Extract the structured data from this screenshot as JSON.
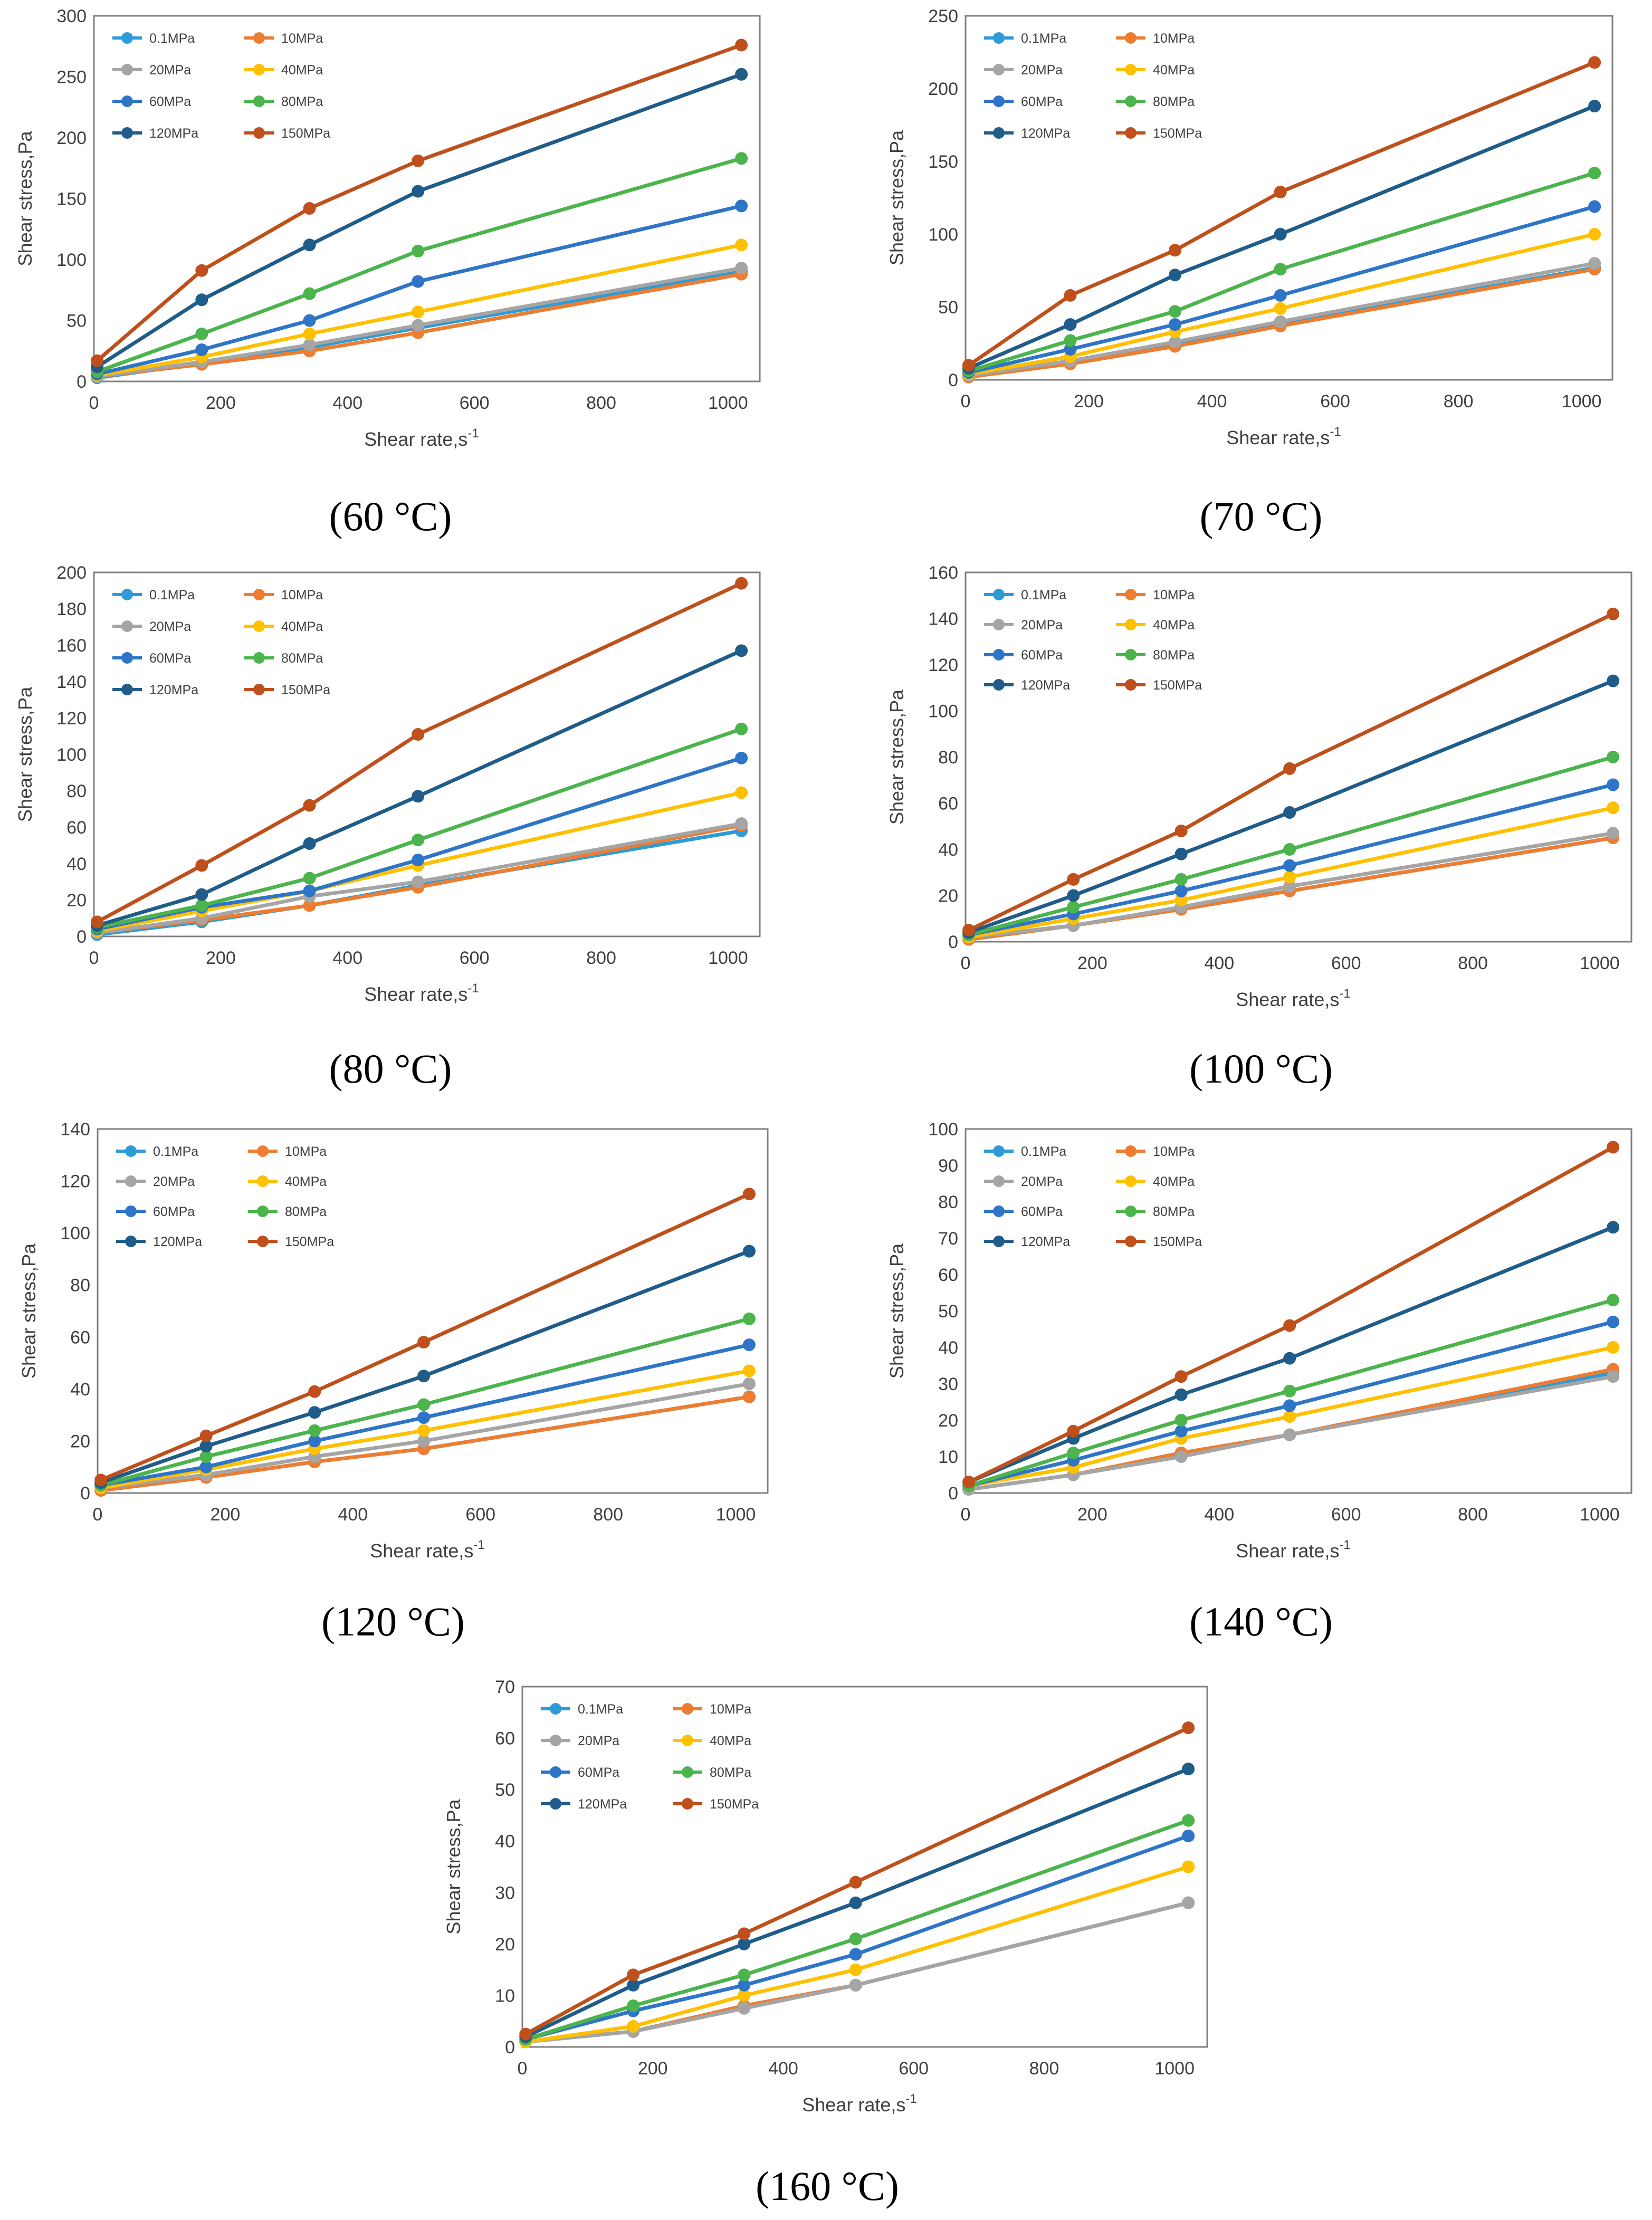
{
  "colors": {
    "0.1MPa": "#2E9BD6",
    "10MPa": "#ED7D31",
    "20MPa": "#A5A5A5",
    "40MPa": "#FFC000",
    "60MPa": "#2E75C8",
    "80MPa": "#4CB44C",
    "120MPa": "#1F5C8A",
    "150MPa": "#C0501B"
  },
  "chart_data": [
    {
      "type": "line",
      "caption": "(60 °C)",
      "xlabel": "Shear rate,s",
      "xlabel_sup": "-1",
      "ylabel": "Shear stress,Pa",
      "x": [
        5.1,
        170,
        340,
        511,
        1021
      ],
      "xlim": [
        0,
        1050
      ],
      "ylim": [
        0,
        300
      ],
      "xticks": [
        "0",
        "200",
        "400",
        "600",
        "800",
        "1000"
      ],
      "yticks": [
        "0",
        "50",
        "100",
        "150",
        "200",
        "250",
        "300"
      ],
      "series": [
        {
          "name": "0.1MPa",
          "values": [
            3,
            15,
            28,
            44,
            90
          ]
        },
        {
          "name": "10MPa",
          "values": [
            4,
            14,
            25,
            40,
            88
          ]
        },
        {
          "name": "20MPa",
          "values": [
            4,
            16,
            30,
            46,
            93
          ]
        },
        {
          "name": "40MPa",
          "values": [
            5,
            20,
            39,
            57,
            112
          ]
        },
        {
          "name": "60MPa",
          "values": [
            6,
            26,
            50,
            82,
            144
          ]
        },
        {
          "name": "80MPa",
          "values": [
            8,
            39,
            72,
            107,
            183
          ]
        },
        {
          "name": "120MPa",
          "values": [
            12,
            67,
            112,
            156,
            252
          ]
        },
        {
          "name": "150MPa",
          "values": [
            17,
            91,
            142,
            181,
            276
          ]
        }
      ]
    },
    {
      "type": "line",
      "caption": "(70 °C)",
      "xlabel": "Shear rate,s",
      "xlabel_sup": "-1",
      "ylabel": "Shear stress,Pa",
      "x": [
        5.1,
        170,
        340,
        511,
        1021
      ],
      "xlim": [
        0,
        1050
      ],
      "ylim": [
        0,
        250
      ],
      "xticks": [
        "0",
        "200",
        "400",
        "600",
        "800",
        "1000"
      ],
      "yticks": [
        "0",
        "50",
        "100",
        "150",
        "200",
        "250"
      ],
      "series": [
        {
          "name": "0.1MPa",
          "values": [
            2,
            12,
            24,
            38,
            77
          ]
        },
        {
          "name": "10MPa",
          "values": [
            2,
            11,
            23,
            37,
            76
          ]
        },
        {
          "name": "20MPa",
          "values": [
            3,
            13,
            26,
            40,
            80
          ]
        },
        {
          "name": "40MPa",
          "values": [
            4,
            16,
            33,
            49,
            100
          ]
        },
        {
          "name": "60MPa",
          "values": [
            5,
            21,
            38,
            58,
            119
          ]
        },
        {
          "name": "80MPa",
          "values": [
            6,
            27,
            47,
            76,
            142
          ]
        },
        {
          "name": "120MPa",
          "values": [
            8,
            38,
            72,
            100,
            188
          ]
        },
        {
          "name": "150MPa",
          "values": [
            10,
            58,
            89,
            129,
            218
          ]
        }
      ]
    },
    {
      "type": "line",
      "caption": "(80 °C)",
      "xlabel": "Shear rate,s",
      "xlabel_sup": "-1",
      "ylabel": "Shear stress,Pa",
      "x": [
        5.1,
        170,
        340,
        511,
        1021
      ],
      "xlim": [
        0,
        1050
      ],
      "ylim": [
        0,
        200
      ],
      "xticks": [
        "0",
        "200",
        "400",
        "600",
        "800",
        "1000"
      ],
      "yticks": [
        "0",
        "20",
        "40",
        "60",
        "80",
        "100",
        "120",
        "140",
        "160",
        "180",
        "200"
      ],
      "series": [
        {
          "name": "0.1MPa",
          "values": [
            1,
            8,
            17,
            28,
            58
          ]
        },
        {
          "name": "10MPa",
          "values": [
            2,
            9,
            17,
            27,
            61
          ]
        },
        {
          "name": "20MPa",
          "values": [
            2,
            10,
            22,
            30,
            62
          ]
        },
        {
          "name": "40MPa",
          "values": [
            3,
            14,
            25,
            39,
            79
          ]
        },
        {
          "name": "60MPa",
          "values": [
            4,
            16,
            25,
            42,
            98
          ]
        },
        {
          "name": "80MPa",
          "values": [
            5,
            17,
            32,
            53,
            114
          ]
        },
        {
          "name": "120MPa",
          "values": [
            6,
            23,
            51,
            77,
            157
          ]
        },
        {
          "name": "150MPa",
          "values": [
            8,
            39,
            72,
            111,
            194
          ]
        }
      ]
    },
    {
      "type": "line",
      "caption": "(100 °C)",
      "xlabel": "Shear rate,s",
      "xlabel_sup": "-1",
      "ylabel": "Shear stress,Pa",
      "x": [
        5.1,
        170,
        340,
        511,
        1021
      ],
      "xlim": [
        0,
        1050
      ],
      "ylim": [
        0,
        160
      ],
      "xticks": [
        "0",
        "200",
        "400",
        "600",
        "800",
        "1000"
      ],
      "yticks": [
        "0",
        "20",
        "40",
        "60",
        "80",
        "100",
        "120",
        "140",
        "160"
      ],
      "series": [
        {
          "name": "0.1MPa",
          "values": [
            1,
            7,
            15,
            22,
            45
          ]
        },
        {
          "name": "10MPa",
          "values": [
            1,
            7,
            14,
            22,
            45
          ]
        },
        {
          "name": "20MPa",
          "values": [
            2,
            7,
            15,
            24,
            47
          ]
        },
        {
          "name": "40MPa",
          "values": [
            2,
            10,
            18,
            28,
            58
          ]
        },
        {
          "name": "60MPa",
          "values": [
            3,
            12,
            22,
            33,
            68
          ]
        },
        {
          "name": "80MPa",
          "values": [
            3,
            15,
            27,
            40,
            80
          ]
        },
        {
          "name": "120MPa",
          "values": [
            4,
            20,
            38,
            56,
            113
          ]
        },
        {
          "name": "150MPa",
          "values": [
            5,
            27,
            48,
            75,
            142
          ]
        }
      ]
    },
    {
      "type": "line",
      "caption": "(120 °C)",
      "xlabel": "Shear rate,s",
      "xlabel_sup": "-1",
      "ylabel": "Shear stress,Pa",
      "x": [
        5.1,
        170,
        340,
        511,
        1021
      ],
      "xlim": [
        0,
        1050
      ],
      "ylim": [
        0,
        140
      ],
      "xticks": [
        "0",
        "200",
        "400",
        "600",
        "800",
        "1000"
      ],
      "yticks": [
        "0",
        "20",
        "40",
        "60",
        "80",
        "100",
        "120",
        "140"
      ],
      "series": [
        {
          "name": "0.1MPa",
          "values": [
            1,
            6,
            12,
            17,
            37
          ]
        },
        {
          "name": "10MPa",
          "values": [
            1,
            6,
            12,
            17,
            37
          ]
        },
        {
          "name": "20MPa",
          "values": [
            2,
            7,
            14,
            20,
            42
          ]
        },
        {
          "name": "40MPa",
          "values": [
            2,
            9,
            17,
            24,
            47
          ]
        },
        {
          "name": "60MPa",
          "values": [
            3,
            10,
            20,
            29,
            57
          ]
        },
        {
          "name": "80MPa",
          "values": [
            3,
            14,
            24,
            34,
            67
          ]
        },
        {
          "name": "120MPa",
          "values": [
            4,
            18,
            31,
            45,
            93
          ]
        },
        {
          "name": "150MPa",
          "values": [
            5,
            22,
            39,
            58,
            115
          ]
        }
      ]
    },
    {
      "type": "line",
      "caption": "(140 °C)",
      "xlabel": "Shear rate,s",
      "xlabel_sup": "-1",
      "ylabel": "Shear stress,Pa",
      "x": [
        5.1,
        170,
        340,
        511,
        1021
      ],
      "xlim": [
        0,
        1050
      ],
      "ylim": [
        0,
        100
      ],
      "xticks": [
        "0",
        "200",
        "400",
        "600",
        "800",
        "1000"
      ],
      "yticks": [
        "0",
        "10",
        "20",
        "30",
        "40",
        "50",
        "60",
        "70",
        "80",
        "90",
        "100"
      ],
      "series": [
        {
          "name": "0.1MPa",
          "values": [
            1,
            5,
            11,
            16,
            33
          ]
        },
        {
          "name": "10MPa",
          "values": [
            1,
            5,
            11,
            16,
            34
          ]
        },
        {
          "name": "20MPa",
          "values": [
            1,
            5,
            10,
            16,
            32
          ]
        },
        {
          "name": "40MPa",
          "values": [
            2,
            7,
            15,
            21,
            40
          ]
        },
        {
          "name": "60MPa",
          "values": [
            2,
            9,
            17,
            24,
            47
          ]
        },
        {
          "name": "80MPa",
          "values": [
            2,
            11,
            20,
            28,
            53
          ]
        },
        {
          "name": "120MPa",
          "values": [
            3,
            15,
            27,
            37,
            73
          ]
        },
        {
          "name": "150MPa",
          "values": [
            3,
            17,
            32,
            46,
            95
          ]
        }
      ]
    },
    {
      "type": "line",
      "caption": "(160 °C)",
      "xlabel": "Shear rate,s",
      "xlabel_sup": "-1",
      "ylabel": "Shear stress,Pa",
      "x": [
        5.1,
        170,
        340,
        511,
        1021
      ],
      "xlim": [
        0,
        1050
      ],
      "ylim": [
        0,
        70
      ],
      "xticks": [
        "0",
        "200",
        "400",
        "600",
        "800",
        "1000"
      ],
      "yticks": [
        "0",
        "10",
        "20",
        "30",
        "40",
        "50",
        "60",
        "70"
      ],
      "series": [
        {
          "name": "0.1MPa",
          "values": [
            1,
            3,
            8,
            12,
            28
          ]
        },
        {
          "name": "10MPa",
          "values": [
            1,
            3,
            8,
            12,
            28
          ]
        },
        {
          "name": "20MPa",
          "values": [
            1,
            3,
            7.5,
            12,
            28
          ]
        },
        {
          "name": "40MPa",
          "values": [
            1,
            4,
            10,
            15,
            35
          ]
        },
        {
          "name": "60MPa",
          "values": [
            1.5,
            7,
            12,
            18,
            41
          ]
        },
        {
          "name": "80MPa",
          "values": [
            1.5,
            8,
            14,
            21,
            44
          ]
        },
        {
          "name": "120MPa",
          "values": [
            2,
            12,
            20,
            28,
            54
          ]
        },
        {
          "name": "150MPa",
          "values": [
            2.5,
            14,
            22,
            32,
            62
          ]
        }
      ]
    }
  ]
}
